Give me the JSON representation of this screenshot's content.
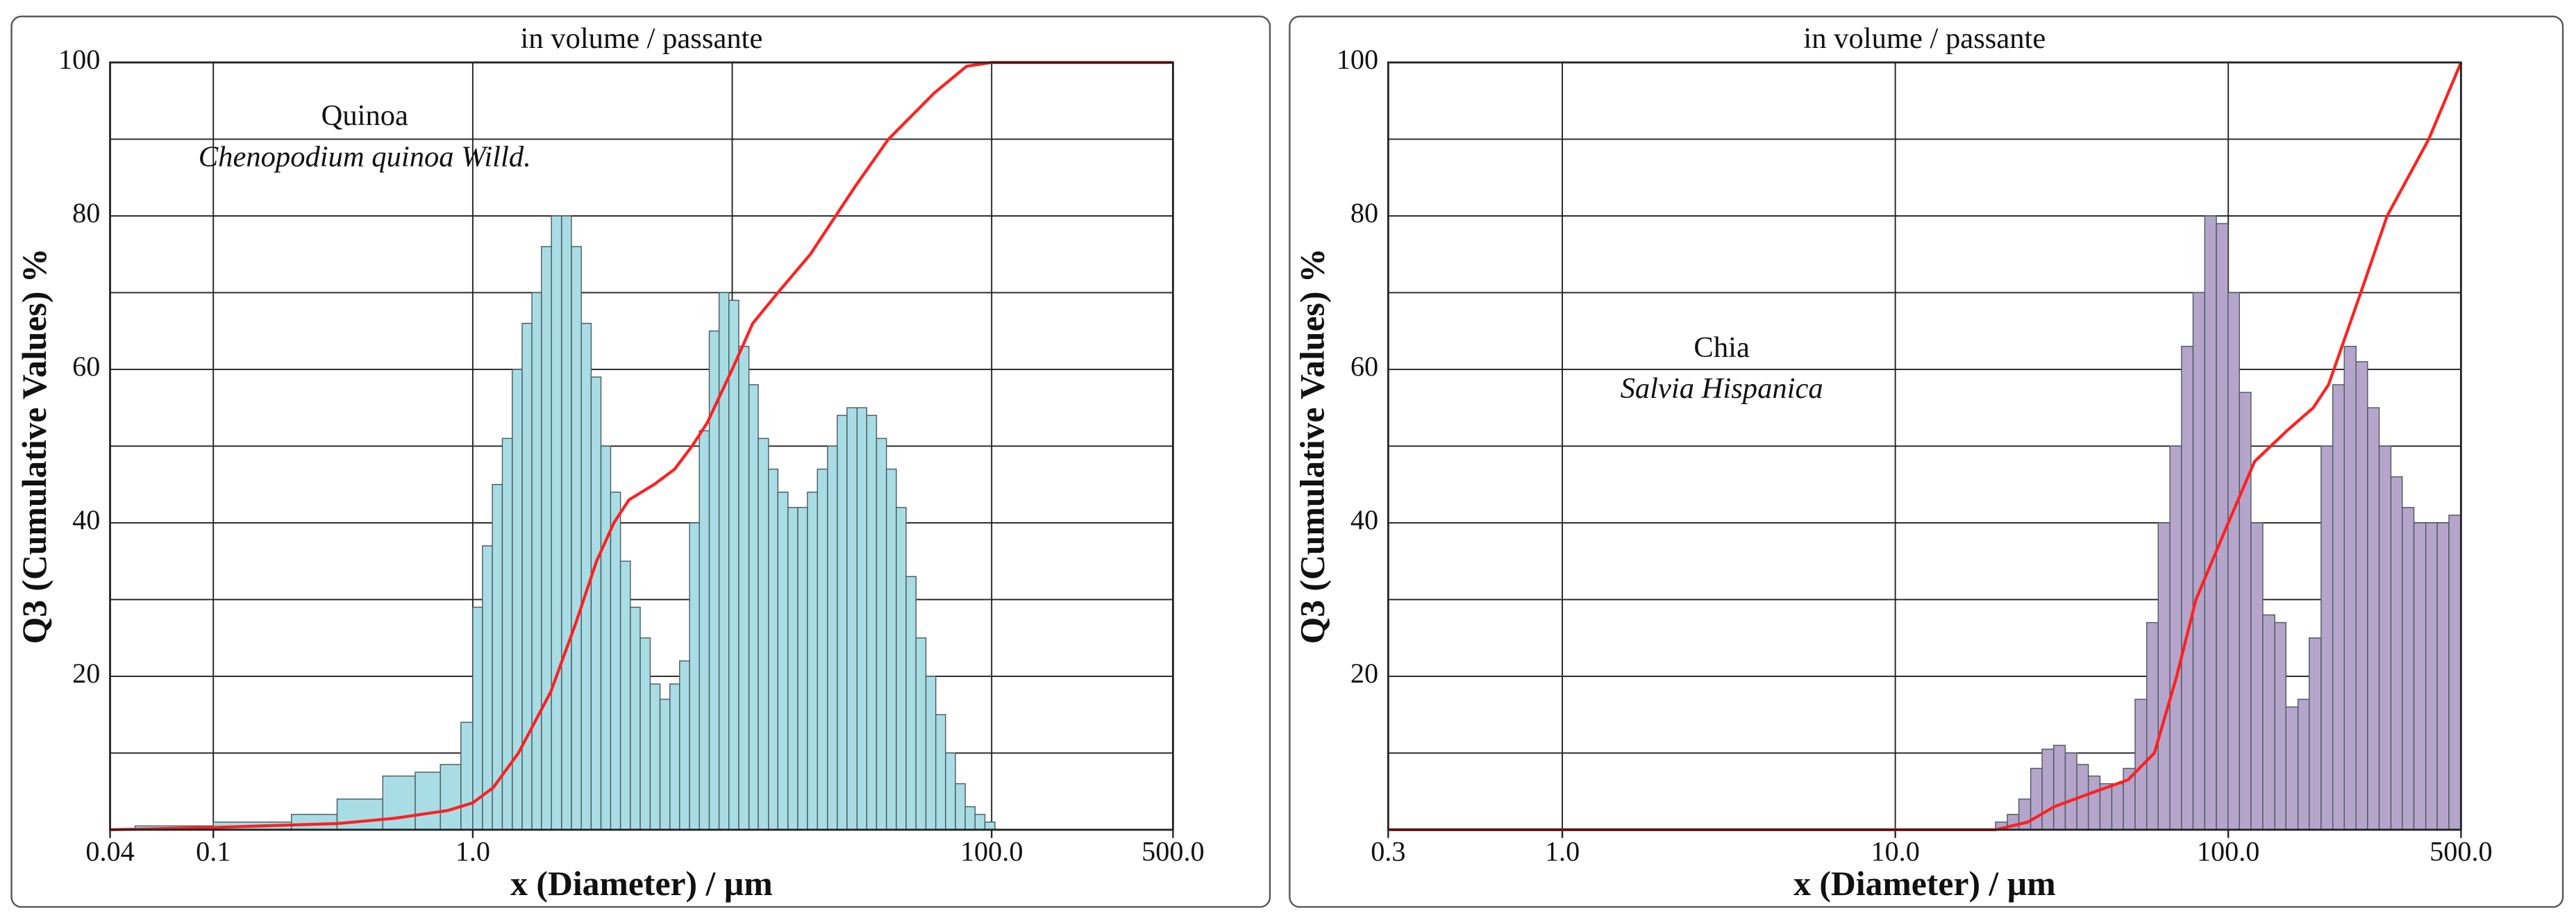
{
  "chart_data": [
    {
      "type": "histogram",
      "title": "in volume / passante",
      "x_label": "x (Diameter) / µm",
      "y_label": "Q3 (Cumulative Values) %",
      "annotations": [
        "Quinoa",
        "Chenopodium quinoa Willd."
      ],
      "xscale": "log",
      "xlim": [
        0.04,
        500
      ],
      "xticks": [
        {
          "value": 0.04,
          "label": "0.04"
        },
        0.1,
        {
          "value": 1,
          "label": "1.0"
        },
        {
          "value": 100,
          "label": "100.0"
        },
        {
          "value": 500,
          "label": "500.0"
        }
      ],
      "xgrid": [
        0.1,
        1,
        10,
        100
      ],
      "ylim": [
        0,
        100
      ],
      "yticks": [
        20,
        40,
        60,
        80,
        100
      ],
      "yminor": [
        10,
        30,
        50,
        70,
        90
      ],
      "grid": true,
      "color": "#a9dde6",
      "bins": [
        0.05,
        0.1,
        0.2,
        0.3,
        0.45,
        0.6,
        0.75,
        0.9,
        1.0,
        1.09,
        1.19,
        1.3,
        1.42,
        1.55,
        1.69,
        1.84,
        2.01,
        2.2,
        2.4,
        2.62,
        2.86,
        3.12,
        3.4,
        3.71,
        4.05,
        4.42,
        4.83,
        5.27,
        5.75,
        6.27,
        6.85,
        7.47,
        8.16,
        8.9,
        9.71,
        10.6,
        11.6,
        12.6,
        13.8,
        15.0,
        16.4,
        17.9,
        19.5,
        21.3,
        23.3,
        25.4,
        27.7,
        30.3,
        33.0,
        36.0,
        39.3,
        42.9,
        46.8,
        51.1,
        55.8,
        60.9,
        66.4,
        72.5,
        79.1,
        86.3,
        94.2,
        103
      ],
      "values": [
        0.5,
        1,
        2,
        4,
        7,
        7.5,
        8.5,
        14,
        29,
        37,
        45,
        51,
        60,
        66,
        70,
        76,
        80,
        80,
        76,
        66,
        59,
        50,
        44,
        35,
        29,
        25,
        19,
        17,
        19,
        22,
        40,
        52,
        65,
        70,
        69,
        63,
        58,
        51,
        47,
        44,
        42,
        42,
        44,
        47,
        50,
        54,
        55,
        55,
        54,
        51,
        47,
        42,
        33,
        25,
        20,
        15,
        10,
        6,
        3,
        2,
        1
      ],
      "line": {
        "color": "#ff2020",
        "x": [
          0.04,
          0.1,
          0.3,
          0.5,
          0.8,
          1.0,
          1.2,
          1.5,
          2,
          2.5,
          3,
          3.5,
          4,
          5,
          6,
          7,
          8,
          10,
          12,
          15,
          20,
          30,
          40,
          60,
          80,
          100,
          500
        ],
        "values": [
          0,
          0.3,
          0.8,
          1.5,
          2.5,
          3.5,
          5.5,
          10,
          18,
          27,
          35,
          40,
          43,
          45,
          47,
          50,
          53,
          60,
          66,
          70,
          75,
          84,
          90,
          96,
          99.5,
          100,
          100
        ]
      }
    },
    {
      "type": "histogram",
      "title": "in volume / passante",
      "x_label": "x (Diameter) / µm",
      "y_label": "Q3 (Cumulative Values) %",
      "annotations": [
        "Chia",
        "Salvia Hispanica"
      ],
      "xscale": "log",
      "xlim": [
        0.3,
        500
      ],
      "xticks": [
        0.3,
        {
          "value": 1,
          "label": "1.0"
        },
        {
          "value": 10,
          "label": "10.0"
        },
        {
          "value": 100,
          "label": "100.0"
        },
        {
          "value": 500,
          "label": "500.0"
        }
      ],
      "xgrid": [
        1,
        10,
        100
      ],
      "ylim": [
        0,
        100
      ],
      "yticks": [
        20,
        40,
        60,
        80,
        100
      ],
      "yminor": [
        10,
        30,
        50,
        70,
        90
      ],
      "grid": true,
      "color": "#b5a5cb",
      "bins": [
        20,
        21.7,
        23.5,
        25.5,
        27.6,
        29.9,
        32.4,
        35.1,
        38.0,
        41.2,
        44.7,
        48.4,
        52.5,
        56.9,
        61.6,
        66.8,
        72.4,
        78.4,
        85.0,
        92.1,
        99.8,
        108,
        117,
        127,
        138,
        149,
        162,
        175,
        190,
        206,
        223,
        242,
        262,
        284,
        308,
        333,
        361,
        392,
        424,
        460,
        500
      ],
      "values": [
        1,
        2,
        4,
        8,
        10.5,
        11,
        10,
        8.5,
        7,
        6,
        6,
        8,
        17,
        27,
        40,
        50,
        63,
        70,
        80,
        79,
        70,
        57,
        40,
        28,
        27,
        16,
        17,
        25,
        50,
        58,
        63,
        61,
        55,
        50,
        46,
        42,
        40,
        40,
        40,
        41
      ],
      "line": {
        "color": "#ff2020",
        "x": [
          0.3,
          20,
          25,
          30,
          40,
          50,
          60,
          70,
          80,
          100,
          120,
          150,
          180,
          200,
          250,
          300,
          400,
          500
        ],
        "values": [
          0,
          0,
          1,
          3,
          5,
          6.5,
          10,
          20,
          30,
          40,
          48,
          52,
          55,
          58,
          70,
          80,
          90,
          100
        ]
      }
    }
  ]
}
